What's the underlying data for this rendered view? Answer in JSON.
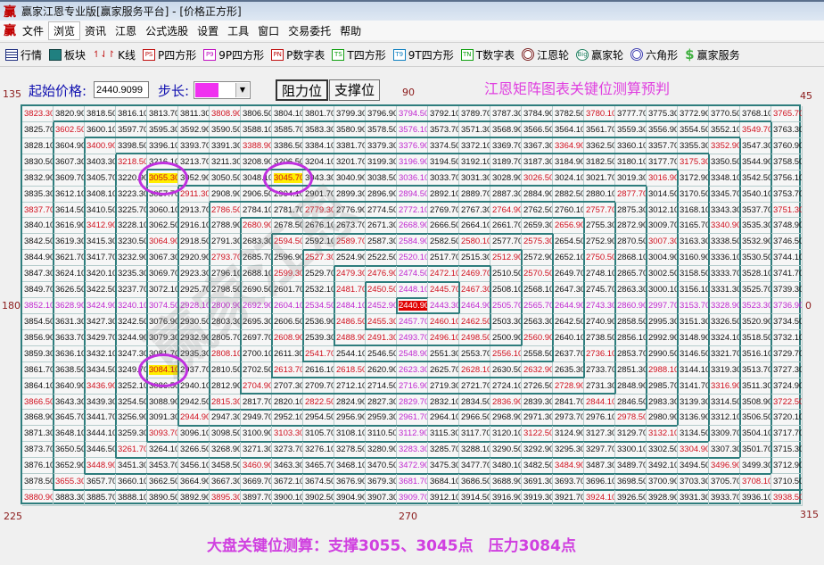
{
  "window": {
    "title": "赢家江恩专业版[赢家服务平台] - [价格正方形]",
    "logo": "赢"
  },
  "menu": [
    "文件",
    "浏览",
    "资讯",
    "江恩",
    "公式选股",
    "设置",
    "工具",
    "窗口",
    "交易委托",
    "帮助"
  ],
  "menu_active": "浏览",
  "toolbar": [
    {
      "label": "行情",
      "icon": "grid-icon"
    },
    {
      "label": "板块",
      "icon": "blocks-icon"
    },
    {
      "label": "K线",
      "icon": "candles-icon"
    },
    {
      "label": "P四方形",
      "icon": "PS"
    },
    {
      "label": "9P四方形",
      "icon": "P9"
    },
    {
      "label": "P数字表",
      "icon": "PN"
    },
    {
      "label": "T四方形",
      "icon": "TS"
    },
    {
      "label": "9T四方形",
      "icon": "T9"
    },
    {
      "label": "T数字表",
      "icon": "TN"
    },
    {
      "label": "江恩轮",
      "icon": "wheel-icon"
    },
    {
      "label": "赢家轮",
      "icon": "Big"
    },
    {
      "label": "六角形",
      "icon": "hexagon-icon"
    },
    {
      "label": "赢家服务",
      "icon": "dollar-icon"
    }
  ],
  "controls": {
    "start_price_label": "起始价格:",
    "start_price": "2440.9099",
    "step_label": "步长:",
    "step_color": "#f030f0",
    "resistance_button": "阻力位",
    "support_button": "支撑位"
  },
  "heading": "江恩矩阵图表关键位测算预判",
  "angles": {
    "a135": "135",
    "a90": "90",
    "a45": "45",
    "a180": "180",
    "a0": "0",
    "a225": "225",
    "a270": "270",
    "a315": "315"
  },
  "grid": {
    "size": 25,
    "start_price": 2440.9099,
    "step": 2.4,
    "highlighted": [
      "3055.30",
      "3045.70",
      "3084.10"
    ],
    "colors": {
      "red": "#d0101e",
      "purple": "#c028d0",
      "wall": "#2e7d7d",
      "highlight": "#ffee00",
      "center": "#e00000"
    }
  },
  "footer": "大盘关键位测算：支撑3055、3045点　压力3084点"
}
